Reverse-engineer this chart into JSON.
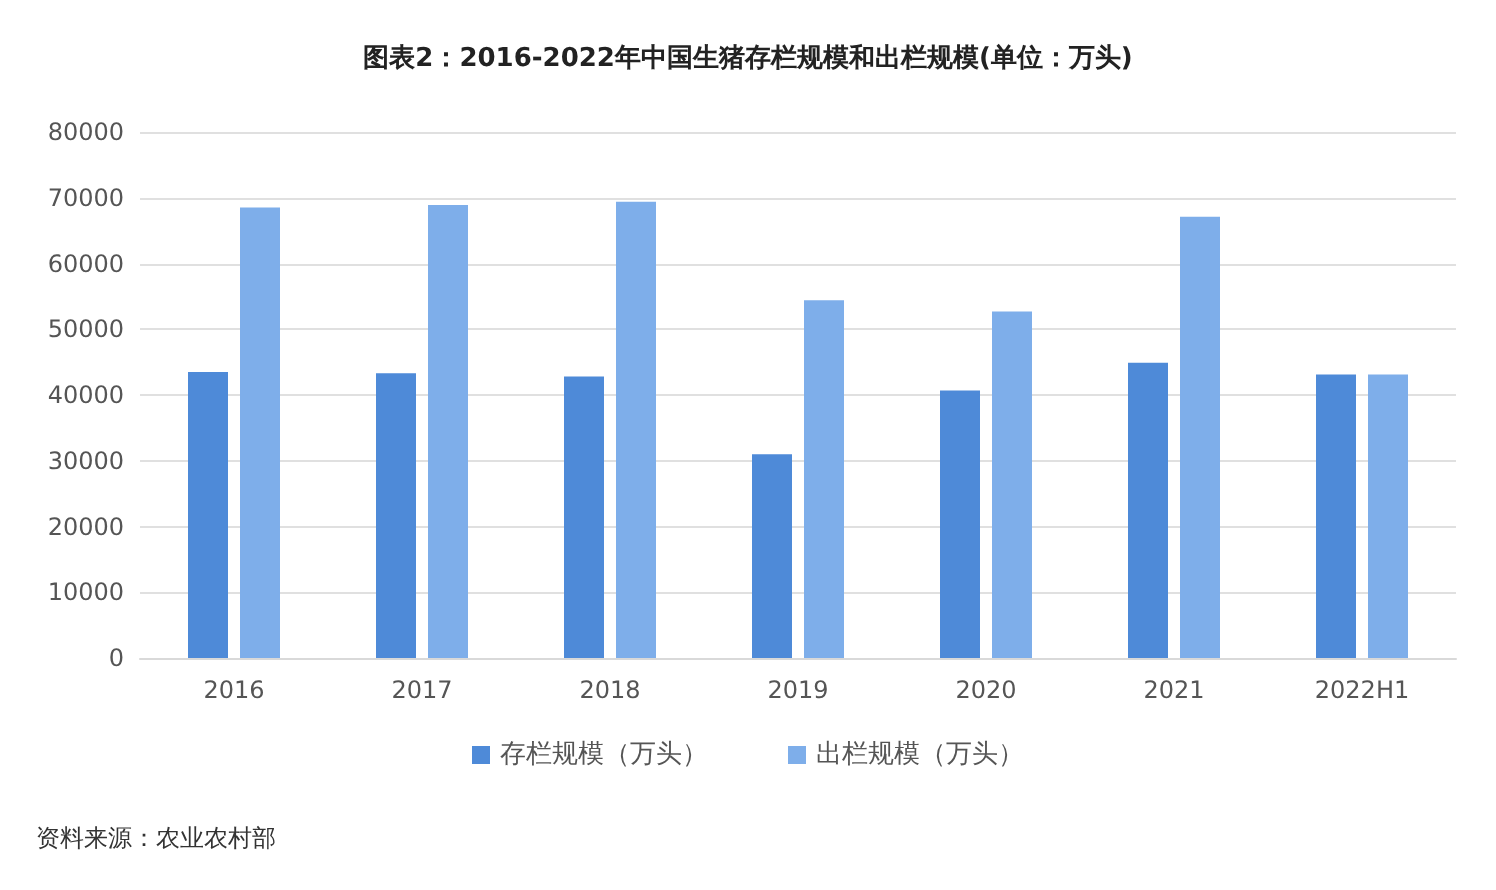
{
  "chart_data": {
    "type": "bar",
    "title": "图表2：2016-2022年中国生猪存栏规模和出栏规模(单位：万头)",
    "categories": [
      "2016",
      "2017",
      "2018",
      "2019",
      "2020",
      "2021",
      "2022H1"
    ],
    "series": [
      {
        "name": "存栏规模（万头）",
        "color": "#4e8ad8",
        "values": [
          43500,
          43300,
          42800,
          31000,
          40700,
          44900,
          43100
        ]
      },
      {
        "name": "出栏规模（万头）",
        "color": "#7eaeea",
        "values": [
          68500,
          68900,
          69400,
          54400,
          52700,
          67100,
          43100
        ]
      }
    ],
    "ylim": [
      0,
      80000
    ],
    "yticks": [
      0,
      10000,
      20000,
      30000,
      40000,
      50000,
      60000,
      70000,
      80000
    ],
    "grid": "y",
    "legend": "bottom",
    "annotations": [
      "资料来源：农业农村部"
    ]
  }
}
